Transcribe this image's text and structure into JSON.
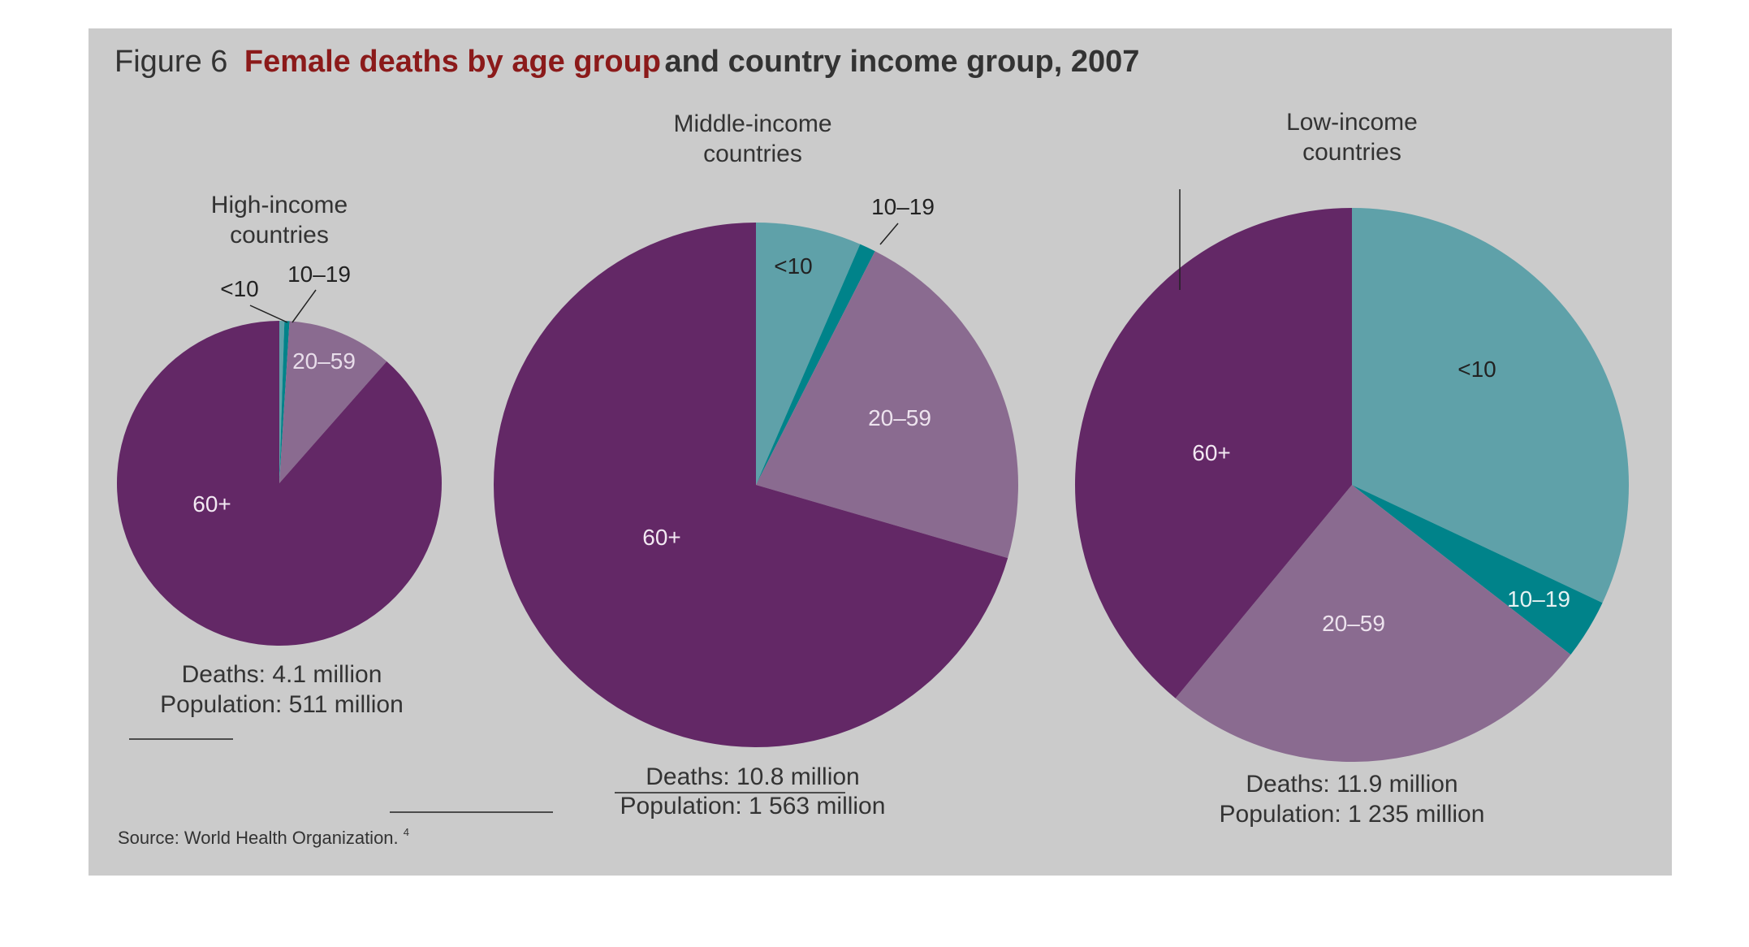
{
  "figure": {
    "number": "Figure 6",
    "title_red": "Female deaths by age group",
    "title_rest": " and country income group, 2007",
    "source": "Source: World Health Organization.",
    "source_note": "4"
  },
  "colors": {
    "background": "#cbcbcb",
    "age_60_plus": "#632866",
    "age_20_59": "#8a6b90",
    "age_10_19": "#00838a",
    "age_under_10": "#5fa1a9",
    "text": "#333333",
    "title_red": "#8b1a1a"
  },
  "chart_data": [
    {
      "type": "pie",
      "title": "High-income countries",
      "title_lines": [
        "High-income",
        "countries"
      ],
      "deaths": "Deaths: 4.1 million",
      "population": "Population: 511 million",
      "slices": [
        {
          "label": "<10",
          "value": 0.5,
          "color": "#5fa1a9",
          "text_color": "#222222"
        },
        {
          "label": "10–19",
          "value": 0.5,
          "color": "#00838a",
          "text_color": "#222222"
        },
        {
          "label": "20–59",
          "value": 10.5,
          "color": "#8a6b90",
          "text_color": "#e8ddea"
        },
        {
          "label": "60+",
          "value": 88.5,
          "color": "#632866",
          "text_color": "#f2e8f2"
        }
      ]
    },
    {
      "type": "pie",
      "title": "Middle-income countries",
      "title_lines": [
        "Middle-income",
        "countries"
      ],
      "deaths": "Deaths: 10.8 million",
      "population": "Population: 1 563 million",
      "slices": [
        {
          "label": "<10",
          "value": 6.5,
          "color": "#5fa1a9",
          "text_color": "#222222"
        },
        {
          "label": "10–19",
          "value": 1,
          "color": "#00838a",
          "text_color": "#222222"
        },
        {
          "label": "20–59",
          "value": 22,
          "color": "#8a6b90",
          "text_color": "#ede3ee"
        },
        {
          "label": "60+",
          "value": 70.5,
          "color": "#632866",
          "text_color": "#f2e8f2"
        }
      ]
    },
    {
      "type": "pie",
      "title": "Low-income countries",
      "title_lines": [
        "Low-income",
        "countries"
      ],
      "deaths": "Deaths: 11.9 million",
      "population": "Population: 1 235 million",
      "slices": [
        {
          "label": "<10",
          "value": 32,
          "color": "#5fa1a9",
          "text_color": "#222222"
        },
        {
          "label": "10–19",
          "value": 3.5,
          "color": "#00838a",
          "text_color": "#e6f2f3"
        },
        {
          "label": "20–59",
          "value": 25.5,
          "color": "#8a6b90",
          "text_color": "#ede3ee"
        },
        {
          "label": "60+",
          "value": 39,
          "color": "#632866",
          "text_color": "#f2e8f2"
        }
      ]
    }
  ]
}
